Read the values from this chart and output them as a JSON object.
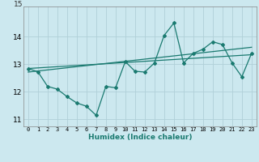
{
  "xlabel": "Humidex (Indice chaleur)",
  "bg_color": "#cce8ef",
  "grid_color": "#b0d0d8",
  "line_color": "#1a7a70",
  "xlim": [
    -0.5,
    23.5
  ],
  "ylim": [
    10.75,
    15.1
  ],
  "yticks": [
    11,
    12,
    13,
    14
  ],
  "xticks": [
    0,
    1,
    2,
    3,
    4,
    5,
    6,
    7,
    8,
    9,
    10,
    11,
    12,
    13,
    14,
    15,
    16,
    17,
    18,
    19,
    20,
    21,
    22,
    23
  ],
  "series1_x": [
    0,
    1,
    2,
    3,
    4,
    5,
    6,
    7,
    8,
    9,
    10,
    11,
    12,
    13,
    14,
    15,
    16,
    17,
    18,
    19,
    20,
    21,
    22,
    23
  ],
  "series1_y": [
    12.85,
    12.73,
    12.2,
    12.1,
    11.83,
    11.6,
    11.48,
    11.15,
    12.2,
    12.15,
    13.1,
    12.75,
    12.72,
    13.05,
    14.05,
    14.5,
    13.05,
    13.4,
    13.55,
    13.82,
    13.72,
    13.05,
    12.55,
    13.4
  ],
  "trend1_x": [
    0,
    23
  ],
  "trend1_y": [
    12.85,
    13.35
  ],
  "trend2_x": [
    0,
    23
  ],
  "trend2_y": [
    12.72,
    13.62
  ],
  "top_label": "15"
}
